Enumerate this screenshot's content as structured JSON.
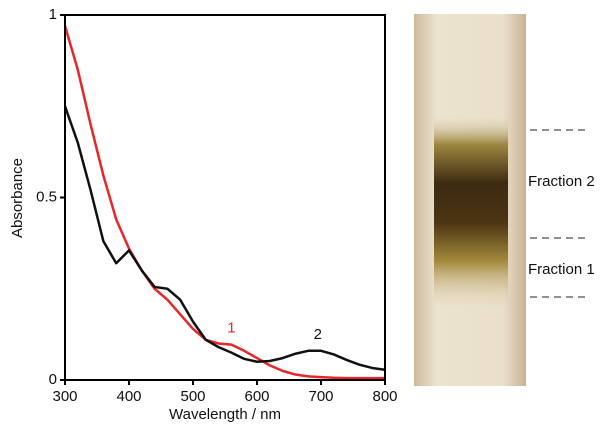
{
  "chart_data": {
    "type": "line",
    "x_label": "Wavelength / nm",
    "y_label": "Absorbance",
    "x": [
      300,
      320,
      340,
      360,
      380,
      400,
      420,
      440,
      460,
      480,
      500,
      520,
      540,
      560,
      580,
      600,
      620,
      640,
      660,
      680,
      700,
      720,
      740,
      760,
      780,
      800
    ],
    "series": [
      {
        "name": "1",
        "color": "#e8262a",
        "values": [
          0.97,
          0.85,
          0.7,
          0.56,
          0.44,
          0.36,
          0.3,
          0.25,
          0.22,
          0.18,
          0.14,
          0.11,
          0.1,
          0.097,
          0.08,
          0.06,
          0.04,
          0.025,
          0.015,
          0.01,
          0.008,
          0.006,
          0.005,
          0.005,
          0.005,
          0.005
        ]
      },
      {
        "name": "2",
        "color": "#111111",
        "values": [
          0.75,
          0.65,
          0.52,
          0.38,
          0.32,
          0.355,
          0.3,
          0.255,
          0.25,
          0.22,
          0.16,
          0.11,
          0.09,
          0.075,
          0.058,
          0.05,
          0.052,
          0.06,
          0.072,
          0.08,
          0.08,
          0.07,
          0.055,
          0.042,
          0.033,
          0.028
        ]
      }
    ],
    "xlim": [
      300,
      800
    ],
    "xticks": [
      300,
      400,
      500,
      600,
      700,
      800
    ],
    "ylim": [
      0,
      1
    ],
    "yticks": [
      0,
      0.5,
      1
    ]
  },
  "photo": {
    "labels": [
      "Fraction 2",
      "Fraction 1"
    ]
  }
}
